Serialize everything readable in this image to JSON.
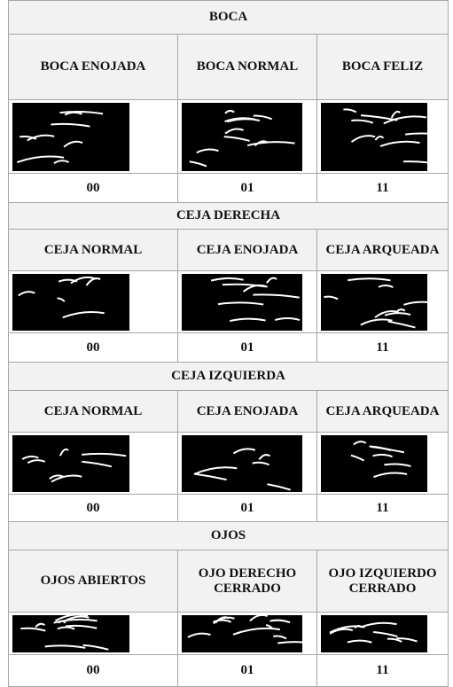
{
  "sections": [
    {
      "title": "BOCA",
      "columns": [
        {
          "label": "BOCA ENOJADA",
          "code": "00"
        },
        {
          "label": "BOCA NORMAL",
          "code": "01"
        },
        {
          "label": "BOCA FELIZ",
          "code": "11"
        }
      ]
    },
    {
      "title": "CEJA DERECHA",
      "columns": [
        {
          "label": "CEJA NORMAL",
          "code": "00"
        },
        {
          "label": "CEJA ENOJADA",
          "code": "01"
        },
        {
          "label": "CEJA ARQUEADA",
          "code": "11"
        }
      ]
    },
    {
      "title": "CEJA IZQUIERDA",
      "columns": [
        {
          "label": "CEJA NORMAL",
          "code": "00"
        },
        {
          "label": "CEJA ENOJADA",
          "code": "01"
        },
        {
          "label": "CEJA ARQUEADA",
          "code": "11"
        }
      ]
    },
    {
      "title": "OJOS",
      "columns": [
        {
          "label": "OJOS ABIERTOS",
          "code": "00"
        },
        {
          "label": "OJO DERECHO CERRADO",
          "code": "01"
        },
        {
          "label": "OJO IZQUIERDO CERRADO",
          "code": "11"
        }
      ]
    }
  ]
}
